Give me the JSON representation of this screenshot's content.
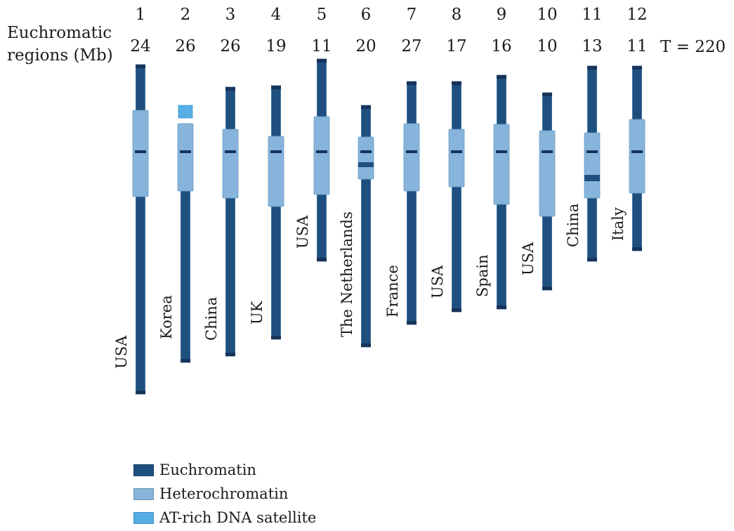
{
  "header": {
    "line1": "Euchromatic",
    "line2": "regions (Mb)",
    "total": "T = 220"
  },
  "colors": {
    "euchromatin": "#1f4f7f",
    "heterochromatin": "#86b4da",
    "at_satellite": "#55aee4",
    "band": "#16345a"
  },
  "chromosomes": [
    {
      "number": "1",
      "mb": "24",
      "country": "USA"
    },
    {
      "number": "2",
      "mb": "26",
      "country": "Korea"
    },
    {
      "number": "3",
      "mb": "26",
      "country": "China"
    },
    {
      "number": "4",
      "mb": "19",
      "country": "UK"
    },
    {
      "number": "5",
      "mb": "11",
      "country": "USA"
    },
    {
      "number": "6",
      "mb": "20",
      "country": "The Netherlands"
    },
    {
      "number": "7",
      "mb": "27",
      "country": "France"
    },
    {
      "number": "8",
      "mb": "17",
      "country": "USA"
    },
    {
      "number": "9",
      "mb": "16",
      "country": "Spain"
    },
    {
      "number": "10",
      "mb": "10",
      "country": "USA"
    },
    {
      "number": "11",
      "mb": "13",
      "country": "China"
    },
    {
      "number": "12",
      "mb": "11",
      "country": "Italy"
    }
  ],
  "legend": [
    {
      "label": "Euchromatin",
      "color": "#1f4f7f"
    },
    {
      "label": "Heterochromatin",
      "color": "#86b4da"
    },
    {
      "label": "AT-rich DNA satellite",
      "color": "#55aee4"
    }
  ]
}
